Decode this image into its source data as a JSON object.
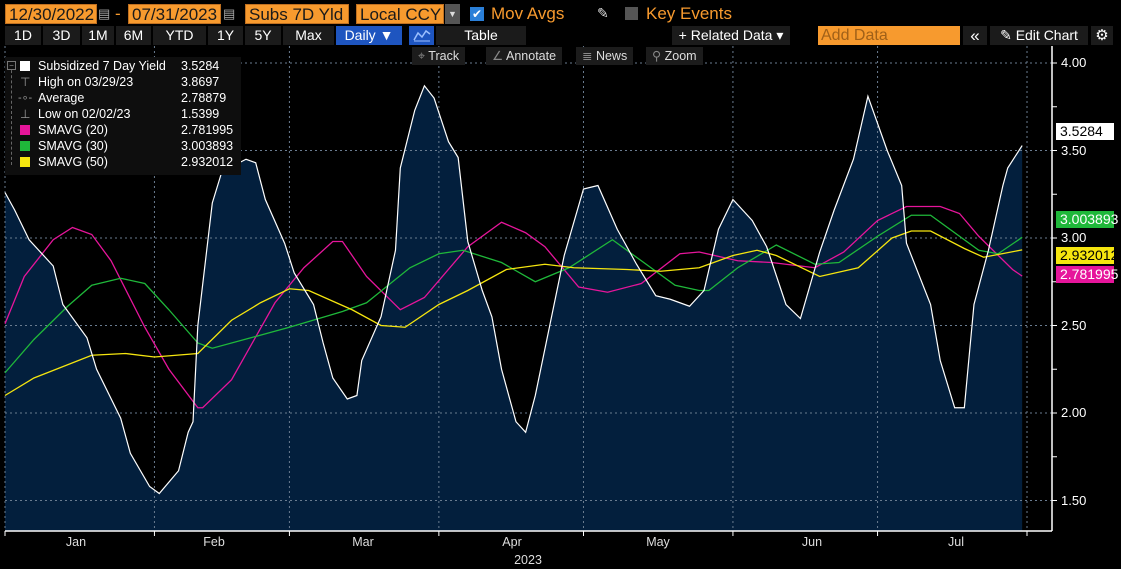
{
  "toolbar": {
    "start_date": "12/30/2022",
    "separator": "-",
    "end_date": "07/31/2023",
    "field": "Subs 7D Yld",
    "currency": "Local CCY",
    "mov_avgs_label": "Mov Avgs",
    "mov_avgs_checked": true,
    "key_events_label": "Key Events",
    "key_events_checked": false,
    "calendar_icon": "calendar-icon"
  },
  "periods": [
    "1D",
    "3D",
    "1M",
    "6M",
    "YTD",
    "1Y",
    "5Y",
    "Max"
  ],
  "frequency": "Daily ▼",
  "table_label": "Table",
  "related_data": "+ Related Data ▾",
  "add_data_placeholder": "Add Data",
  "collapse": "«",
  "edit_chart": "Edit Chart",
  "settings_icon": "gear-icon",
  "tools": {
    "track": "Track",
    "annotate": "Annotate",
    "news": "News",
    "zoom": "Zoom"
  },
  "legend": [
    {
      "label": "Subsidized 7 Day Yield",
      "value": "3.5284",
      "color": "#ffffff"
    },
    {
      "label": "High on 03/29/23",
      "value": "3.8697",
      "icon": "high-marker-icon"
    },
    {
      "label": "Average",
      "value": "2.78879",
      "icon": "average-marker-icon"
    },
    {
      "label": "Low on 02/02/23",
      "value": "1.5399",
      "icon": "low-marker-icon"
    },
    {
      "label": "SMAVG (20)",
      "value": "2.781995",
      "color": "#e6159b"
    },
    {
      "label": "SMAVG (30)",
      "value": "3.003893",
      "color": "#1fb83a"
    },
    {
      "label": "SMAVG (50)",
      "value": "2.932012",
      "color": "#f5e50f"
    }
  ],
  "chart_data": {
    "type": "area",
    "ylim": [
      1.3,
      4.15
    ],
    "y_ticks": [
      "4.00",
      "3.50",
      "3.00",
      "2.50",
      "2.00",
      "1.50"
    ],
    "x_tick_labels": [
      "Jan",
      "Feb",
      "Mar",
      "Apr",
      "May",
      "Jun",
      "Jul"
    ],
    "x_year_label": "2023",
    "grid": true,
    "legend_position": "top-left",
    "last_value_tags": [
      {
        "value": "3.5284",
        "color": "#ffffff",
        "text_color": "#000000"
      },
      {
        "value": "3.003893",
        "color": "#1fb83a",
        "text_color": "#ffffff"
      },
      {
        "value": "2.932012",
        "color": "#f5e50f",
        "text_color": "#000000"
      },
      {
        "value": "2.781995",
        "color": "#e6159b",
        "text_color": "#ffffff"
      }
    ],
    "series": [
      {
        "name": "Subsidized 7 Day Yield",
        "color": "#ffffff",
        "fill": "#031f3d",
        "points": [
          [
            "2022-12-30",
            3.26
          ],
          [
            "2023-01-03",
            3.16
          ],
          [
            "2023-01-06",
            2.99
          ],
          [
            "2023-01-11",
            2.84
          ],
          [
            "2023-01-13",
            2.62
          ],
          [
            "2023-01-18",
            2.43
          ],
          [
            "2023-01-20",
            2.25
          ],
          [
            "2023-01-25",
            1.97
          ],
          [
            "2023-01-27",
            1.77
          ],
          [
            "2023-01-31",
            1.58
          ],
          [
            "2023-02-02",
            1.54
          ],
          [
            "2023-02-06",
            1.67
          ],
          [
            "2023-02-08",
            1.89
          ],
          [
            "2023-02-09",
            1.95
          ],
          [
            "2023-02-10",
            2.5
          ],
          [
            "2023-02-13",
            3.2
          ],
          [
            "2023-02-15",
            3.38
          ],
          [
            "2023-02-20",
            3.45
          ],
          [
            "2023-02-22",
            3.43
          ],
          [
            "2023-02-24",
            3.22
          ],
          [
            "2023-02-28",
            2.97
          ],
          [
            "2023-03-02",
            2.8
          ],
          [
            "2023-03-06",
            2.62
          ],
          [
            "2023-03-08",
            2.4
          ],
          [
            "2023-03-10",
            2.2
          ],
          [
            "2023-03-13",
            2.08
          ],
          [
            "2023-03-15",
            2.1
          ],
          [
            "2023-03-16",
            2.3
          ],
          [
            "2023-03-20",
            2.55
          ],
          [
            "2023-03-23",
            2.93
          ],
          [
            "2023-03-24",
            3.4
          ],
          [
            "2023-03-27",
            3.73
          ],
          [
            "2023-03-29",
            3.8697
          ],
          [
            "2023-03-31",
            3.8
          ],
          [
            "2023-04-03",
            3.55
          ],
          [
            "2023-04-05",
            3.46
          ],
          [
            "2023-04-07",
            2.98
          ],
          [
            "2023-04-10",
            2.7
          ],
          [
            "2023-04-12",
            2.55
          ],
          [
            "2023-04-14",
            2.25
          ],
          [
            "2023-04-17",
            1.95
          ],
          [
            "2023-04-19",
            1.89
          ],
          [
            "2023-04-21",
            2.1
          ],
          [
            "2023-04-24",
            2.5
          ],
          [
            "2023-04-27",
            2.9
          ],
          [
            "2023-05-01",
            3.28
          ],
          [
            "2023-05-04",
            3.3
          ],
          [
            "2023-05-08",
            3.05
          ],
          [
            "2023-05-12",
            2.85
          ],
          [
            "2023-05-16",
            2.67
          ],
          [
            "2023-05-19",
            2.65
          ],
          [
            "2023-05-23",
            2.61
          ],
          [
            "2023-05-26",
            2.7
          ],
          [
            "2023-05-29",
            3.05
          ],
          [
            "2023-06-01",
            3.22
          ],
          [
            "2023-06-05",
            3.1
          ],
          [
            "2023-06-08",
            2.95
          ],
          [
            "2023-06-12",
            2.62
          ],
          [
            "2023-06-15",
            2.54
          ],
          [
            "2023-06-19",
            2.92
          ],
          [
            "2023-06-22",
            3.16
          ],
          [
            "2023-06-26",
            3.45
          ],
          [
            "2023-06-29",
            3.81
          ],
          [
            "2023-07-03",
            3.5
          ],
          [
            "2023-07-06",
            3.3
          ],
          [
            "2023-07-07",
            2.97
          ],
          [
            "2023-07-12",
            2.62
          ],
          [
            "2023-07-14",
            2.3
          ],
          [
            "2023-07-17",
            2.03
          ],
          [
            "2023-07-19",
            2.03
          ],
          [
            "2023-07-21",
            2.62
          ],
          [
            "2023-07-24",
            2.93
          ],
          [
            "2023-07-27",
            3.3
          ],
          [
            "2023-07-28",
            3.4
          ],
          [
            "2023-07-31",
            3.5284
          ]
        ]
      },
      {
        "name": "SMAVG (20)",
        "color": "#e6159b",
        "points": [
          [
            "2022-12-30",
            2.51
          ],
          [
            "2023-01-05",
            2.78
          ],
          [
            "2023-01-11",
            2.99
          ],
          [
            "2023-01-15",
            3.06
          ],
          [
            "2023-01-19",
            3.02
          ],
          [
            "2023-01-23",
            2.87
          ],
          [
            "2023-01-30",
            2.49
          ],
          [
            "2023-02-04",
            2.25
          ],
          [
            "2023-02-10",
            2.03
          ],
          [
            "2023-02-11",
            2.03
          ],
          [
            "2023-02-17",
            2.19
          ],
          [
            "2023-02-26",
            2.63
          ],
          [
            "2023-03-04",
            2.83
          ],
          [
            "2023-03-10",
            2.98
          ],
          [
            "2023-03-12",
            2.98
          ],
          [
            "2023-03-17",
            2.78
          ],
          [
            "2023-03-24",
            2.59
          ],
          [
            "2023-03-29",
            2.66
          ],
          [
            "2023-04-07",
            2.95
          ],
          [
            "2023-04-14",
            3.09
          ],
          [
            "2023-04-19",
            3.03
          ],
          [
            "2023-04-23",
            2.95
          ],
          [
            "2023-04-30",
            2.72
          ],
          [
            "2023-05-06",
            2.69
          ],
          [
            "2023-05-13",
            2.74
          ],
          [
            "2023-05-21",
            2.91
          ],
          [
            "2023-05-25",
            2.92
          ],
          [
            "2023-06-02",
            2.87
          ],
          [
            "2023-06-09",
            2.86
          ],
          [
            "2023-06-18",
            2.83
          ],
          [
            "2023-06-24",
            2.92
          ],
          [
            "2023-07-01",
            3.1
          ],
          [
            "2023-07-07",
            3.18
          ],
          [
            "2023-07-14",
            3.18
          ],
          [
            "2023-07-18",
            3.14
          ],
          [
            "2023-07-22",
            3.01
          ],
          [
            "2023-07-29",
            2.82
          ],
          [
            "2023-07-31",
            2.781995
          ]
        ]
      },
      {
        "name": "SMAVG (30)",
        "color": "#1fb83a",
        "points": [
          [
            "2022-12-30",
            2.23
          ],
          [
            "2023-01-07",
            2.42
          ],
          [
            "2023-01-14",
            2.61
          ],
          [
            "2023-01-19",
            2.73
          ],
          [
            "2023-01-25",
            2.77
          ],
          [
            "2023-01-30",
            2.74
          ],
          [
            "2023-02-04",
            2.59
          ],
          [
            "2023-02-10",
            2.4
          ],
          [
            "2023-02-13",
            2.37
          ],
          [
            "2023-02-21",
            2.43
          ],
          [
            "2023-03-01",
            2.49
          ],
          [
            "2023-03-12",
            2.58
          ],
          [
            "2023-03-17",
            2.63
          ],
          [
            "2023-03-26",
            2.83
          ],
          [
            "2023-04-01",
            2.91
          ],
          [
            "2023-04-06",
            2.93
          ],
          [
            "2023-04-14",
            2.86
          ],
          [
            "2023-04-21",
            2.75
          ],
          [
            "2023-04-28",
            2.83
          ],
          [
            "2023-05-07",
            2.99
          ],
          [
            "2023-05-13",
            2.87
          ],
          [
            "2023-05-20",
            2.73
          ],
          [
            "2023-05-25",
            2.7
          ],
          [
            "2023-05-27",
            2.7
          ],
          [
            "2023-06-02",
            2.83
          ],
          [
            "2023-06-10",
            2.96
          ],
          [
            "2023-06-18",
            2.85
          ],
          [
            "2023-06-23",
            2.86
          ],
          [
            "2023-07-01",
            3.01
          ],
          [
            "2023-07-08",
            3.13
          ],
          [
            "2023-07-12",
            3.13
          ],
          [
            "2023-07-22",
            2.93
          ],
          [
            "2023-07-26",
            2.91
          ],
          [
            "2023-07-31",
            3.003893
          ]
        ]
      },
      {
        "name": "SMAVG (50)",
        "color": "#f5e50f",
        "points": [
          [
            "2022-12-30",
            2.1
          ],
          [
            "2023-01-07",
            2.2
          ],
          [
            "2023-01-19",
            2.33
          ],
          [
            "2023-01-26",
            2.34
          ],
          [
            "2023-02-01",
            2.32
          ],
          [
            "2023-02-10",
            2.34
          ],
          [
            "2023-02-17",
            2.53
          ],
          [
            "2023-02-23",
            2.63
          ],
          [
            "2023-03-01",
            2.71
          ],
          [
            "2023-03-05",
            2.7
          ],
          [
            "2023-03-14",
            2.59
          ],
          [
            "2023-03-20",
            2.5
          ],
          [
            "2023-03-25",
            2.49
          ],
          [
            "2023-04-01",
            2.62
          ],
          [
            "2023-04-07",
            2.7
          ],
          [
            "2023-04-15",
            2.82
          ],
          [
            "2023-04-23",
            2.85
          ],
          [
            "2023-04-29",
            2.83
          ],
          [
            "2023-05-10",
            2.82
          ],
          [
            "2023-05-17",
            2.81
          ],
          [
            "2023-05-25",
            2.83
          ],
          [
            "2023-06-01",
            2.9
          ],
          [
            "2023-06-06",
            2.93
          ],
          [
            "2023-06-10",
            2.9
          ],
          [
            "2023-06-19",
            2.78
          ],
          [
            "2023-06-27",
            2.83
          ],
          [
            "2023-07-04",
            3.0
          ],
          [
            "2023-07-08",
            3.04
          ],
          [
            "2023-07-12",
            3.04
          ],
          [
            "2023-07-19",
            2.94
          ],
          [
            "2023-07-23",
            2.89
          ],
          [
            "2023-07-31",
            2.932012
          ]
        ]
      }
    ]
  }
}
